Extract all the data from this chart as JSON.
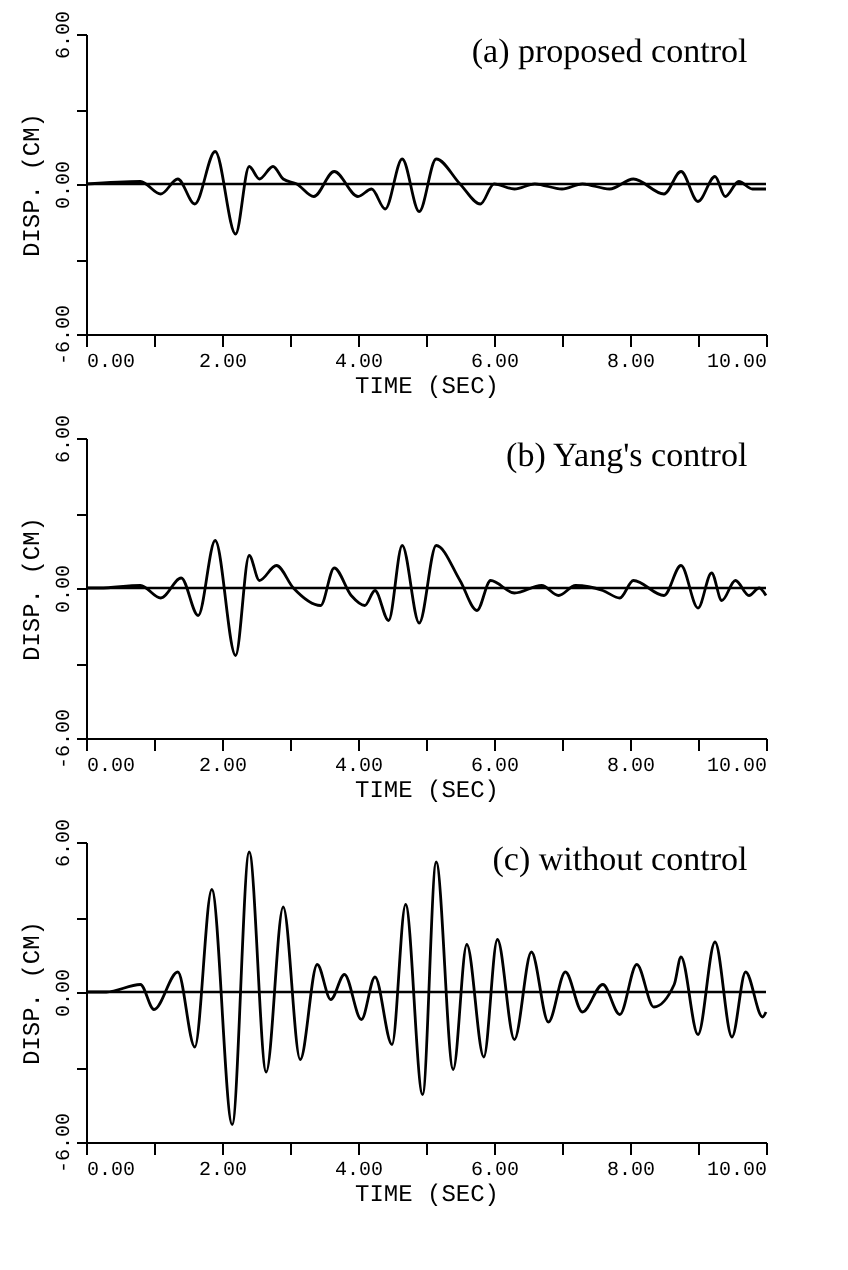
{
  "chart_data": [
    {
      "type": "line",
      "title": "(a) proposed control",
      "xlabel": "TIME (SEC)",
      "ylabel": "DISP. (CM)",
      "xlim": [
        0,
        10
      ],
      "ylim": [
        -6,
        6
      ],
      "xticks": [
        {
          "value": 0,
          "label": "0.00"
        },
        {
          "value": 1,
          "label": null
        },
        {
          "value": 2,
          "label": "2.00"
        },
        {
          "value": 3,
          "label": null
        },
        {
          "value": 4,
          "label": "4.00"
        },
        {
          "value": 5,
          "label": null
        },
        {
          "value": 6,
          "label": "6.00"
        },
        {
          "value": 7,
          "label": null
        },
        {
          "value": 8,
          "label": "8.00"
        },
        {
          "value": 9,
          "label": null
        },
        {
          "value": 10,
          "label": "10.00"
        }
      ],
      "yticks": [
        {
          "value": -6,
          "label": "-6.00"
        },
        {
          "value": -3,
          "label": null
        },
        {
          "value": 0,
          "label": "0.00"
        },
        {
          "value": 3,
          "label": null
        },
        {
          "value": 6,
          "label": "6.00"
        }
      ],
      "ref_lines": [
        {
          "axis": "y",
          "value": 0,
          "color": "#000000"
        }
      ],
      "series": [
        {
          "color": "#000000",
          "x": [
            0,
            0.8,
            1.1,
            1.35,
            1.6,
            1.9,
            2.2,
            2.4,
            2.55,
            2.75,
            2.9,
            3.1,
            3.35,
            3.65,
            4.0,
            4.2,
            4.4,
            4.65,
            4.9,
            5.15,
            5.5,
            5.8,
            6.0,
            6.3,
            6.6,
            7.0,
            7.3,
            7.7,
            8.05,
            8.5,
            8.75,
            9.0,
            9.25,
            9.4,
            9.6,
            9.8,
            10
          ],
          "values": [
            0,
            0.1,
            -0.4,
            0.2,
            -0.8,
            1.3,
            -2.0,
            0.7,
            0.2,
            0.7,
            0.2,
            0,
            -0.5,
            0.5,
            -0.5,
            -0.2,
            -1.0,
            1.0,
            -1.1,
            1.0,
            0,
            -0.8,
            0,
            -0.2,
            0,
            -0.2,
            0,
            -0.2,
            0.2,
            -0.4,
            0.5,
            -0.7,
            0.3,
            -0.5,
            0.1,
            -0.2,
            -0.2
          ]
        }
      ]
    },
    {
      "type": "line",
      "title": "(b) Yang's control",
      "xlabel": "TIME (SEC)",
      "ylabel": "DISP. (CM)",
      "xlim": [
        0,
        10
      ],
      "ylim": [
        -6,
        6
      ],
      "xticks": [
        {
          "value": 0,
          "label": "0.00"
        },
        {
          "value": 1,
          "label": null
        },
        {
          "value": 2,
          "label": "2.00"
        },
        {
          "value": 3,
          "label": null
        },
        {
          "value": 4,
          "label": "4.00"
        },
        {
          "value": 5,
          "label": null
        },
        {
          "value": 6,
          "label": "6.00"
        },
        {
          "value": 7,
          "label": null
        },
        {
          "value": 8,
          "label": "8.00"
        },
        {
          "value": 9,
          "label": null
        },
        {
          "value": 10,
          "label": "10.00"
        }
      ],
      "yticks": [
        {
          "value": -6,
          "label": "-6.00"
        },
        {
          "value": -3,
          "label": null
        },
        {
          "value": 0,
          "label": "0.00"
        },
        {
          "value": 3,
          "label": null
        },
        {
          "value": 6,
          "label": "6.00"
        }
      ],
      "ref_lines": [
        {
          "axis": "y",
          "value": 0,
          "color": "#000000"
        }
      ],
      "series": [
        {
          "color": "#000000",
          "x": [
            0,
            0.2,
            0.8,
            1.1,
            1.4,
            1.65,
            1.9,
            2.2,
            2.4,
            2.55,
            2.8,
            3.05,
            3.45,
            3.65,
            3.9,
            4.1,
            4.25,
            4.45,
            4.65,
            4.9,
            5.15,
            5.5,
            5.75,
            5.95,
            6.3,
            6.7,
            6.95,
            7.2,
            7.6,
            7.85,
            8.05,
            8.5,
            8.75,
            9.0,
            9.2,
            9.35,
            9.55,
            9.75,
            9.9,
            10
          ],
          "values": [
            0,
            0,
            0.1,
            -0.4,
            0.4,
            -1.1,
            1.9,
            -2.7,
            1.3,
            0.3,
            0.9,
            0,
            -0.7,
            0.8,
            -0.3,
            -0.7,
            -0.1,
            -1.3,
            1.7,
            -1.4,
            1.7,
            0.3,
            -0.9,
            0.3,
            -0.2,
            0.1,
            -0.3,
            0.1,
            -0.1,
            -0.4,
            0.3,
            -0.3,
            0.9,
            -0.8,
            0.6,
            -0.5,
            0.3,
            -0.3,
            0,
            -0.3
          ]
        }
      ]
    },
    {
      "type": "line",
      "title": "(c) without control",
      "xlabel": "TIME (SEC)",
      "ylabel": "DISP. (CM)",
      "xlim": [
        0,
        10
      ],
      "ylim": [
        -6,
        6
      ],
      "xticks": [
        {
          "value": 0,
          "label": "0.00"
        },
        {
          "value": 1,
          "label": null
        },
        {
          "value": 2,
          "label": "2.00"
        },
        {
          "value": 3,
          "label": null
        },
        {
          "value": 4,
          "label": "4.00"
        },
        {
          "value": 5,
          "label": null
        },
        {
          "value": 6,
          "label": "6.00"
        },
        {
          "value": 7,
          "label": null
        },
        {
          "value": 8,
          "label": "8.00"
        },
        {
          "value": 9,
          "label": null
        },
        {
          "value": 10,
          "label": "10.00"
        }
      ],
      "yticks": [
        {
          "value": -6,
          "label": "-6.00"
        },
        {
          "value": -3,
          "label": null
        },
        {
          "value": 0,
          "label": "0.00"
        },
        {
          "value": 3,
          "label": null
        },
        {
          "value": 6,
          "label": "6.00"
        }
      ],
      "ref_lines": [
        {
          "axis": "y",
          "value": 0,
          "color": "#000000"
        }
      ],
      "series": [
        {
          "color": "#000000",
          "x": [
            0,
            0.3,
            0.8,
            1.0,
            1.35,
            1.6,
            1.85,
            2.15,
            2.4,
            2.65,
            2.9,
            3.15,
            3.4,
            3.6,
            3.8,
            4.05,
            4.25,
            4.5,
            4.7,
            4.95,
            5.15,
            5.4,
            5.6,
            5.85,
            6.05,
            6.3,
            6.55,
            6.8,
            7.05,
            7.3,
            7.6,
            7.85,
            8.1,
            8.35,
            8.65,
            8.75,
            9.0,
            9.25,
            9.5,
            9.7,
            9.95,
            10
          ],
          "values": [
            0,
            0,
            0.3,
            -0.7,
            0.8,
            -2.2,
            4.1,
            -5.3,
            5.6,
            -3.2,
            3.4,
            -2.7,
            1.1,
            -0.3,
            0.7,
            -1.1,
            0.6,
            -2.1,
            3.5,
            -4.1,
            5.2,
            -3.1,
            1.9,
            -2.6,
            2.1,
            -1.9,
            1.6,
            -1.2,
            0.8,
            -0.8,
            0.3,
            -0.9,
            1.1,
            -0.6,
            0.3,
            1.4,
            -1.7,
            2.0,
            -1.8,
            0.8,
            -1.0,
            -0.8
          ]
        }
      ]
    }
  ]
}
